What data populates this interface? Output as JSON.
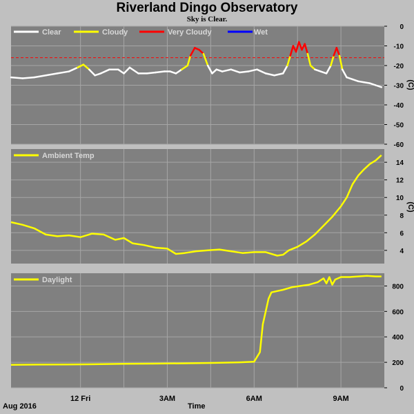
{
  "header": {
    "title": "Riverland Dingo Observatory",
    "subtitle": "Sky is Clear."
  },
  "x_axis": {
    "month_label": "Aug 2016",
    "title": "Time",
    "ticks": [
      {
        "hour": 12,
        "label": "12 Fri"
      },
      {
        "hour": 15,
        "label": "3AM"
      },
      {
        "hour": 18,
        "label": "6AM"
      },
      {
        "hour": 21,
        "label": "9AM"
      }
    ],
    "minor_hours": [
      13.5,
      16.5,
      19.5
    ]
  },
  "colors": {
    "plot_bg": "#808080",
    "grid": "#a6a6a6",
    "clear": "#ffffff",
    "cloudy": "#ffff00",
    "very_cloudy": "#ff0000",
    "wet": "#0000ff",
    "threshold": "#ff0000"
  },
  "chart_data": [
    {
      "type": "line",
      "id": "sky",
      "x_range_hours": [
        9.6,
        22.5
      ],
      "ylim": [
        -60,
        0
      ],
      "yticks": [
        0,
        -10,
        -20,
        -30,
        -40,
        -50,
        -60
      ],
      "ylabel": "(C)",
      "threshold": -16,
      "legend": [
        "Clear",
        "Cloudy",
        "Very Cloudy",
        "Wet"
      ],
      "thresholds_note": {
        "cloudy_above": -22,
        "very_cloudy_above": -16
      },
      "x": [
        9.6,
        10.0,
        10.4,
        10.8,
        11.2,
        11.6,
        11.9,
        12.1,
        12.3,
        12.5,
        12.7,
        13.0,
        13.3,
        13.5,
        13.7,
        14.0,
        14.3,
        14.6,
        14.9,
        15.1,
        15.3,
        15.5,
        15.7,
        15.8,
        15.95,
        16.1,
        16.25,
        16.4,
        16.55,
        16.7,
        16.9,
        17.2,
        17.5,
        17.8,
        18.1,
        18.4,
        18.7,
        19.0,
        19.15,
        19.25,
        19.35,
        19.45,
        19.55,
        19.65,
        19.75,
        19.85,
        19.95,
        20.1,
        20.3,
        20.5,
        20.65,
        20.75,
        20.85,
        20.95,
        21.05,
        21.2,
        21.4,
        21.6,
        21.8,
        22.0,
        22.2,
        22.4
      ],
      "y": [
        -26,
        -26.5,
        -26,
        -25,
        -24,
        -23,
        -21,
        -19.5,
        -22,
        -25,
        -24,
        -22,
        -22,
        -24,
        -21,
        -24,
        -24,
        -23.5,
        -23,
        -23,
        -24,
        -22,
        -20,
        -15,
        -11,
        -12,
        -14,
        -20,
        -24,
        -22,
        -23,
        -22,
        -23.5,
        -23,
        -22,
        -24,
        -25,
        -24,
        -20,
        -15,
        -10,
        -13,
        -8,
        -12,
        -9,
        -14,
        -20,
        -22,
        -23,
        -24,
        -20,
        -15,
        -11,
        -15,
        -22,
        -26,
        -27,
        -28,
        -28.5,
        -29,
        -30,
        -31
      ]
    },
    {
      "type": "line",
      "id": "ambient",
      "x_range_hours": [
        9.6,
        22.5
      ],
      "ylim": [
        2.5,
        15.5
      ],
      "yticks": [
        4,
        6,
        8,
        10,
        12,
        14
      ],
      "ylabel": "(C)",
      "legend": [
        "Ambient Temp"
      ],
      "x": [
        9.6,
        10.0,
        10.4,
        10.8,
        11.2,
        11.6,
        12.0,
        12.4,
        12.8,
        13.2,
        13.5,
        13.8,
        14.2,
        14.6,
        15.0,
        15.3,
        15.6,
        16.0,
        16.4,
        16.8,
        17.2,
        17.6,
        18.0,
        18.4,
        18.8,
        19.0,
        19.2,
        19.5,
        19.8,
        20.1,
        20.4,
        20.7,
        21.0,
        21.2,
        21.4,
        21.6,
        21.8,
        22.0,
        22.2,
        22.4
      ],
      "y": [
        7.2,
        6.9,
        6.5,
        5.8,
        5.6,
        5.7,
        5.5,
        5.9,
        5.8,
        5.2,
        5.4,
        4.8,
        4.6,
        4.3,
        4.2,
        3.6,
        3.7,
        3.9,
        4.0,
        4.1,
        3.9,
        3.7,
        3.8,
        3.8,
        3.4,
        3.5,
        4.0,
        4.4,
        5.0,
        5.8,
        6.8,
        7.8,
        9.0,
        10.0,
        11.5,
        12.5,
        13.2,
        13.8,
        14.2,
        14.8
      ]
    },
    {
      "type": "line",
      "id": "daylight",
      "x_range_hours": [
        9.6,
        22.5
      ],
      "ylim": [
        0,
        900
      ],
      "yticks": [
        0,
        200,
        400,
        600,
        800
      ],
      "legend": [
        "Daylight"
      ],
      "x": [
        9.6,
        10.5,
        11.5,
        12.5,
        13.5,
        14.5,
        15.5,
        16.5,
        17.5,
        18.0,
        18.2,
        18.3,
        18.4,
        18.5,
        18.6,
        18.8,
        19.0,
        19.3,
        19.6,
        19.9,
        20.2,
        20.4,
        20.5,
        20.6,
        20.7,
        20.8,
        20.9,
        21.0,
        21.3,
        21.6,
        21.9,
        22.2,
        22.4
      ],
      "y": [
        180,
        182,
        183,
        185,
        188,
        190,
        192,
        195,
        200,
        205,
        280,
        500,
        600,
        700,
        750,
        760,
        770,
        790,
        800,
        810,
        830,
        860,
        820,
        870,
        810,
        850,
        860,
        870,
        870,
        875,
        880,
        875,
        875
      ]
    }
  ]
}
